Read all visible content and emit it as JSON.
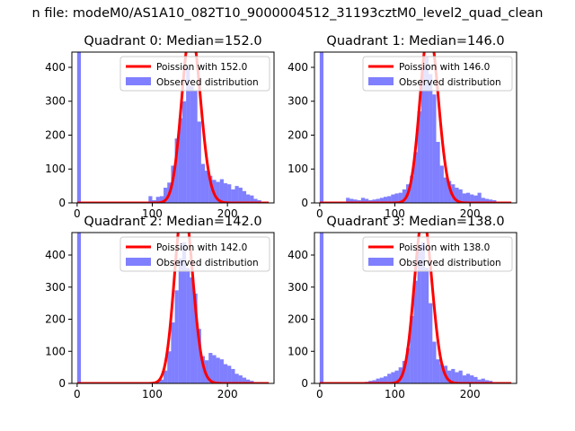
{
  "figure_title": "n file: modeM0/AS1A10_082T10_9000004512_31193cztM0_level2_quad_clean",
  "colors": {
    "poisson": "#ff0000",
    "observed": "#0000ff",
    "axis": "#000000",
    "background": "#ffffff"
  },
  "chart_data": [
    {
      "type": "bar",
      "title": "Quadrant 0: Median=152.0",
      "median": 152.0,
      "xlim": [
        -7,
        262
      ],
      "ylim": [
        0,
        445
      ],
      "xticks": [
        0,
        100,
        200
      ],
      "yticks": [
        0,
        100,
        200,
        300,
        400
      ],
      "legend_position": "upper-right",
      "legend": [
        "Poission with 152.0",
        "Observed distribution"
      ],
      "bin_width": 5,
      "hist": [
        {
          "x": 0,
          "y": 445
        },
        {
          "x": 95,
          "y": 20
        },
        {
          "x": 100,
          "y": 8
        },
        {
          "x": 105,
          "y": 18
        },
        {
          "x": 110,
          "y": 20
        },
        {
          "x": 115,
          "y": 45
        },
        {
          "x": 120,
          "y": 60
        },
        {
          "x": 125,
          "y": 110
        },
        {
          "x": 130,
          "y": 190
        },
        {
          "x": 135,
          "y": 250
        },
        {
          "x": 140,
          "y": 300
        },
        {
          "x": 145,
          "y": 400
        },
        {
          "x": 150,
          "y": 345
        },
        {
          "x": 155,
          "y": 330
        },
        {
          "x": 160,
          "y": 240
        },
        {
          "x": 165,
          "y": 115
        },
        {
          "x": 170,
          "y": 95
        },
        {
          "x": 175,
          "y": 80
        },
        {
          "x": 180,
          "y": 68
        },
        {
          "x": 185,
          "y": 62
        },
        {
          "x": 190,
          "y": 70
        },
        {
          "x": 195,
          "y": 58
        },
        {
          "x": 200,
          "y": 55
        },
        {
          "x": 205,
          "y": 40
        },
        {
          "x": 210,
          "y": 50
        },
        {
          "x": 215,
          "y": 45
        },
        {
          "x": 220,
          "y": 35
        },
        {
          "x": 225,
          "y": 25
        },
        {
          "x": 230,
          "y": 22
        },
        {
          "x": 235,
          "y": 12
        },
        {
          "x": 240,
          "y": 8
        }
      ]
    },
    {
      "type": "bar",
      "title": "Quadrant 1: Median=146.0",
      "median": 146.0,
      "xlim": [
        -7,
        262
      ],
      "ylim": [
        0,
        445
      ],
      "xticks": [
        0,
        100,
        200
      ],
      "yticks": [
        0,
        100,
        200,
        300,
        400
      ],
      "legend_position": "upper-right",
      "legend": [
        "Poission with 146.0",
        "Observed distribution"
      ],
      "bin_width": 5,
      "hist": [
        {
          "x": 0,
          "y": 445
        },
        {
          "x": 35,
          "y": 15
        },
        {
          "x": 40,
          "y": 12
        },
        {
          "x": 45,
          "y": 10
        },
        {
          "x": 50,
          "y": 8
        },
        {
          "x": 55,
          "y": 15
        },
        {
          "x": 60,
          "y": 12
        },
        {
          "x": 65,
          "y": 8
        },
        {
          "x": 70,
          "y": 10
        },
        {
          "x": 75,
          "y": 12
        },
        {
          "x": 80,
          "y": 15
        },
        {
          "x": 85,
          "y": 18
        },
        {
          "x": 90,
          "y": 20
        },
        {
          "x": 95,
          "y": 25
        },
        {
          "x": 100,
          "y": 28
        },
        {
          "x": 105,
          "y": 30
        },
        {
          "x": 110,
          "y": 40
        },
        {
          "x": 115,
          "y": 55
        },
        {
          "x": 120,
          "y": 80
        },
        {
          "x": 125,
          "y": 150
        },
        {
          "x": 130,
          "y": 270
        },
        {
          "x": 135,
          "y": 400
        },
        {
          "x": 140,
          "y": 430
        },
        {
          "x": 145,
          "y": 380
        },
        {
          "x": 150,
          "y": 320
        },
        {
          "x": 155,
          "y": 180
        },
        {
          "x": 160,
          "y": 110
        },
        {
          "x": 165,
          "y": 75
        },
        {
          "x": 170,
          "y": 65
        },
        {
          "x": 175,
          "y": 55
        },
        {
          "x": 180,
          "y": 45
        },
        {
          "x": 185,
          "y": 40
        },
        {
          "x": 190,
          "y": 28
        },
        {
          "x": 195,
          "y": 30
        },
        {
          "x": 200,
          "y": 25
        },
        {
          "x": 205,
          "y": 22
        },
        {
          "x": 210,
          "y": 30
        },
        {
          "x": 215,
          "y": 15
        },
        {
          "x": 220,
          "y": 12
        },
        {
          "x": 225,
          "y": 10
        },
        {
          "x": 230,
          "y": 8
        }
      ]
    },
    {
      "type": "bar",
      "title": "Quadrant 2: Median=142.0",
      "median": 142.0,
      "xlim": [
        -7,
        262
      ],
      "ylim": [
        0,
        470
      ],
      "xticks": [
        0,
        100,
        200
      ],
      "yticks": [
        0,
        100,
        200,
        300,
        400
      ],
      "legend_position": "upper-right",
      "legend": [
        "Poission with 142.0",
        "Observed distribution"
      ],
      "bin_width": 5,
      "hist": [
        {
          "x": 0,
          "y": 470
        },
        {
          "x": 100,
          "y": 5
        },
        {
          "x": 105,
          "y": 8
        },
        {
          "x": 110,
          "y": 12
        },
        {
          "x": 115,
          "y": 40
        },
        {
          "x": 120,
          "y": 100
        },
        {
          "x": 125,
          "y": 190
        },
        {
          "x": 130,
          "y": 290
        },
        {
          "x": 135,
          "y": 390
        },
        {
          "x": 140,
          "y": 440
        },
        {
          "x": 145,
          "y": 360
        },
        {
          "x": 150,
          "y": 330
        },
        {
          "x": 155,
          "y": 280
        },
        {
          "x": 160,
          "y": 170
        },
        {
          "x": 165,
          "y": 85
        },
        {
          "x": 170,
          "y": 72
        },
        {
          "x": 175,
          "y": 95
        },
        {
          "x": 180,
          "y": 88
        },
        {
          "x": 185,
          "y": 80
        },
        {
          "x": 190,
          "y": 75
        },
        {
          "x": 195,
          "y": 60
        },
        {
          "x": 200,
          "y": 55
        },
        {
          "x": 205,
          "y": 45
        },
        {
          "x": 210,
          "y": 30
        },
        {
          "x": 215,
          "y": 25
        },
        {
          "x": 220,
          "y": 18
        },
        {
          "x": 225,
          "y": 12
        },
        {
          "x": 230,
          "y": 8
        }
      ]
    },
    {
      "type": "bar",
      "title": "Quadrant 3: Median=138.0",
      "median": 138.0,
      "xlim": [
        -7,
        262
      ],
      "ylim": [
        0,
        470
      ],
      "xticks": [
        0,
        100,
        200
      ],
      "yticks": [
        0,
        100,
        200,
        300,
        400
      ],
      "legend_position": "upper-right",
      "legend": [
        "Poission with 138.0",
        "Observed distribution"
      ],
      "bin_width": 5,
      "hist": [
        {
          "x": 0,
          "y": 470
        },
        {
          "x": 60,
          "y": 5
        },
        {
          "x": 65,
          "y": 8
        },
        {
          "x": 70,
          "y": 10
        },
        {
          "x": 75,
          "y": 15
        },
        {
          "x": 80,
          "y": 18
        },
        {
          "x": 85,
          "y": 22
        },
        {
          "x": 90,
          "y": 30
        },
        {
          "x": 95,
          "y": 35
        },
        {
          "x": 100,
          "y": 40
        },
        {
          "x": 105,
          "y": 50
        },
        {
          "x": 110,
          "y": 70
        },
        {
          "x": 115,
          "y": 110
        },
        {
          "x": 120,
          "y": 210
        },
        {
          "x": 125,
          "y": 320
        },
        {
          "x": 130,
          "y": 430
        },
        {
          "x": 135,
          "y": 440
        },
        {
          "x": 140,
          "y": 360
        },
        {
          "x": 145,
          "y": 250
        },
        {
          "x": 150,
          "y": 130
        },
        {
          "x": 155,
          "y": 75
        },
        {
          "x": 160,
          "y": 60
        },
        {
          "x": 165,
          "y": 55
        },
        {
          "x": 170,
          "y": 40
        },
        {
          "x": 175,
          "y": 45
        },
        {
          "x": 180,
          "y": 35
        },
        {
          "x": 185,
          "y": 40
        },
        {
          "x": 190,
          "y": 25
        },
        {
          "x": 195,
          "y": 30
        },
        {
          "x": 200,
          "y": 25
        },
        {
          "x": 205,
          "y": 20
        },
        {
          "x": 210,
          "y": 12
        },
        {
          "x": 215,
          "y": 15
        },
        {
          "x": 220,
          "y": 10
        },
        {
          "x": 225,
          "y": 8
        }
      ]
    }
  ]
}
